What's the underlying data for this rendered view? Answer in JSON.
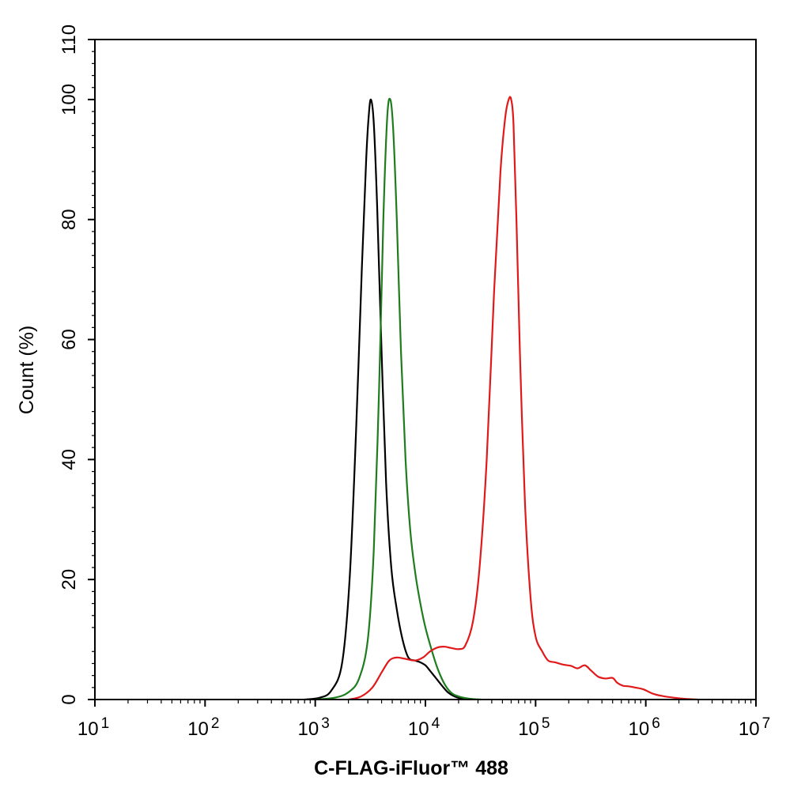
{
  "chart_data": {
    "type": "line",
    "title": "",
    "xlabel": "C-FLAG-iFluor™ 488",
    "ylabel": "Count  (%)",
    "x_scale": "log",
    "xlim": [
      10,
      10000000
    ],
    "ylim": [
      0,
      110
    ],
    "x_ticks": [
      {
        "value": 10,
        "base": "10",
        "exp": "1"
      },
      {
        "value": 100,
        "base": "10",
        "exp": "2"
      },
      {
        "value": 1000,
        "base": "10",
        "exp": "3"
      },
      {
        "value": 10000,
        "base": "10",
        "exp": "4"
      },
      {
        "value": 100000,
        "base": "10",
        "exp": "5"
      },
      {
        "value": 1000000,
        "base": "10",
        "exp": "6"
      },
      {
        "value": 10000000,
        "base": "10",
        "exp": "7"
      }
    ],
    "y_ticks": [
      "0",
      "20",
      "40",
      "60",
      "80",
      "100",
      "110"
    ],
    "grid": false,
    "legend": "none",
    "series": [
      {
        "color": "#000000",
        "x": [
          800,
          1100,
          1400,
          1750,
          2050,
          2350,
          2650,
          2900,
          3050,
          3200,
          3400,
          3650,
          4000,
          4400,
          4900,
          5500,
          6200,
          7000,
          8000,
          9000,
          10000,
          11000,
          12300,
          14000,
          16000,
          18500,
          21000,
          25000
        ],
        "y": [
          0,
          0.3,
          1.5,
          6,
          20,
          45,
          72,
          90,
          97,
          100,
          96,
          82,
          58,
          36,
          22,
          15,
          10,
          7,
          6.5,
          6.2,
          5.7,
          4.8,
          3.7,
          2.4,
          1.2,
          0.5,
          0.2,
          0
        ]
      },
      {
        "color": "#1e7d1e",
        "x": [
          1000,
          1500,
          2000,
          2500,
          3000,
          3400,
          3800,
          4150,
          4500,
          4800,
          5100,
          5500,
          6000,
          6600,
          7300,
          8100,
          9000,
          10000,
          11500,
          13000,
          15000,
          17500,
          21000,
          26000,
          32000
        ],
        "y": [
          0,
          0.3,
          1.2,
          3.5,
          10,
          25,
          52,
          80,
          97,
          100,
          95,
          80,
          58,
          40,
          28,
          21,
          16,
          12,
          8,
          5,
          2.5,
          1,
          0.4,
          0.1,
          0
        ]
      },
      {
        "color": "#e0191b",
        "x": [
          2000,
          2600,
          3300,
          4000,
          4700,
          5500,
          6500,
          8000,
          9500,
          11000,
          13000,
          15000,
          17000,
          20000,
          23000,
          27000,
          31000,
          36000,
          42000,
          48000,
          53000,
          57000,
          60000,
          63000,
          67000,
          72000,
          80000,
          90000,
          100000,
          115000,
          130000,
          150000,
          180000,
          210000,
          240000,
          280000,
          320000,
          370000,
          430000,
          500000,
          550000,
          620000,
          700000,
          800000,
          950000,
          1150000,
          1400000,
          1800000,
          2300000,
          3000000
        ],
        "y": [
          0,
          0.5,
          2,
          4.5,
          6.5,
          7,
          6.8,
          6.5,
          7,
          8,
          8.7,
          8.8,
          8.6,
          8.4,
          9,
          13,
          22,
          40,
          68,
          88,
          97,
          100,
          100,
          96,
          80,
          58,
          33,
          17,
          10.5,
          8,
          6.5,
          6.2,
          5.8,
          5.6,
          5.2,
          5.7,
          4.8,
          3.8,
          3.5,
          3.6,
          2.8,
          2.3,
          2.2,
          2.0,
          1.7,
          1.0,
          0.6,
          0.3,
          0.1,
          0
        ]
      }
    ]
  }
}
